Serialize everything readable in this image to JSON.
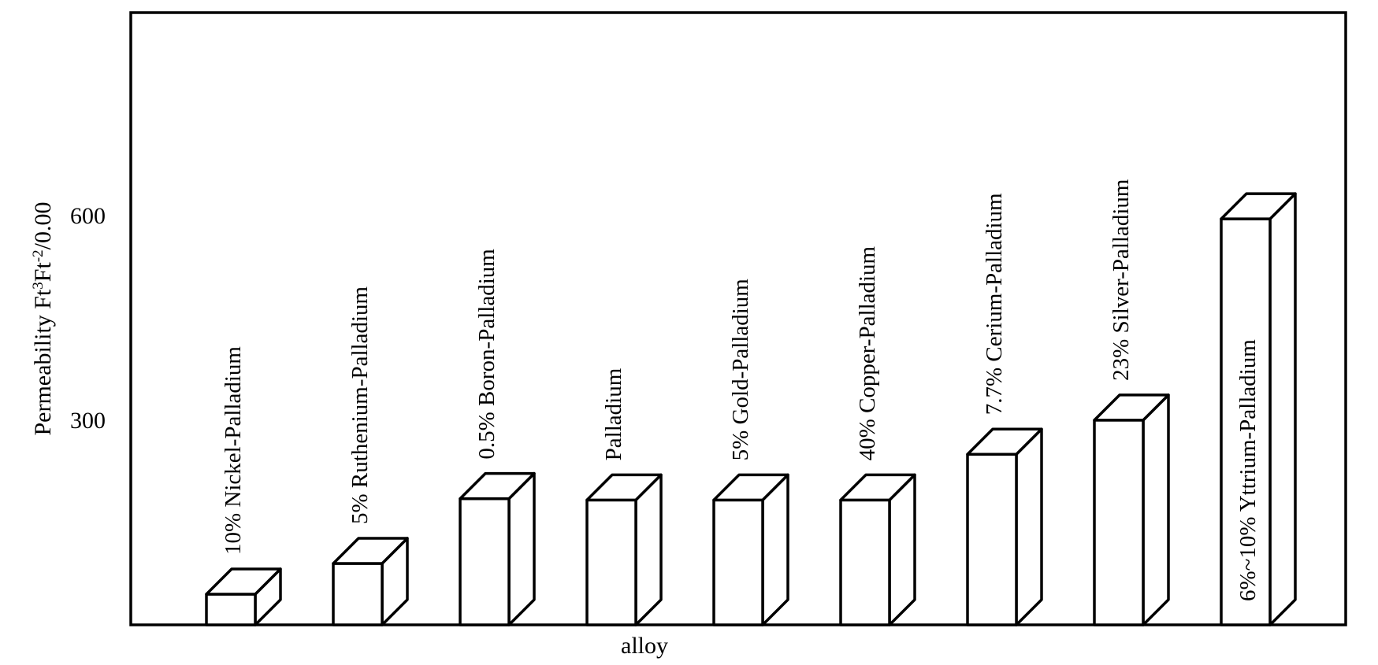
{
  "chart_data": {
    "type": "bar",
    "title": "",
    "xlabel": "alloy",
    "ylabel_main": "Permeability Ft",
    "ylabel_sup1": "3",
    "ylabel_mid": "Ft",
    "ylabel_sup2": "-2",
    "ylabel_tail": "/0.00",
    "ylim": [
      0,
      900
    ],
    "yticks": [
      "300",
      "600"
    ],
    "yticks_values": [
      300,
      600
    ],
    "categories": [
      "10%  Nickel-Palladium",
      "5% Ruthenium-Palladium",
      "0.5% Boron-Palladium",
      "Palladium",
      "5% Gold-Palladium",
      "40% Copper-Palladium",
      "7.7% Cerium-Palladium",
      "23% Silver-Palladium",
      "6%~10%  Yttrium-Palladium"
    ],
    "values": [
      45,
      90,
      185,
      183,
      183,
      183,
      250,
      300,
      595
    ],
    "grid": false,
    "legend": "none"
  }
}
